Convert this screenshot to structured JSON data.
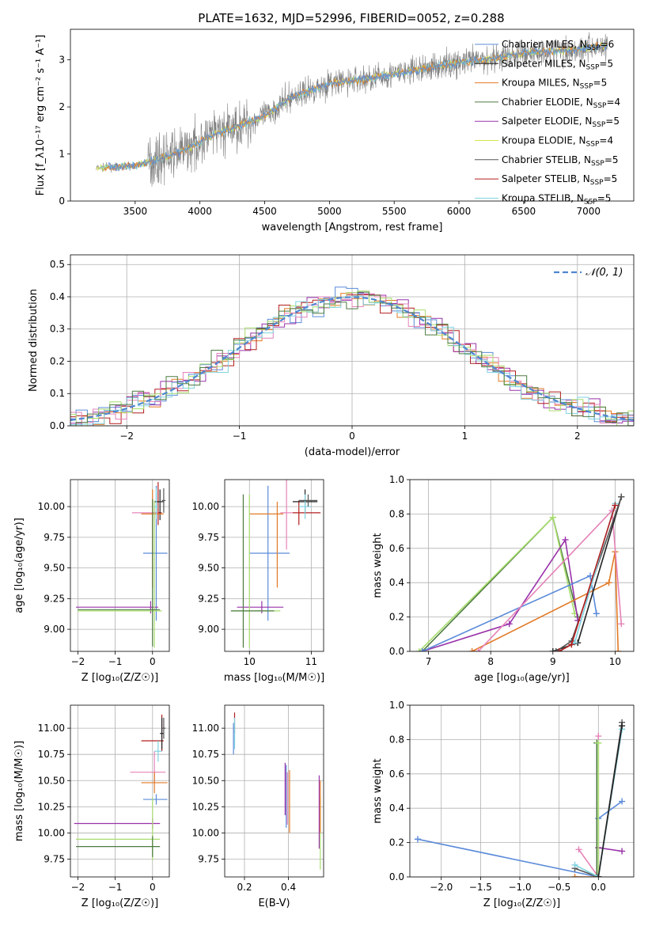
{
  "figure_title": "PLATE=1632, MJD=52996, FIBERID=0052, z=0.288",
  "colors": {
    "Chabrier MILES": "#5b8bd9",
    "Salpeter MILES": "#222222",
    "Kroupa MILES": "#e27a26",
    "Chabrier ELODIE": "#4d7a40",
    "Salpeter ELODIE": "#9932aa",
    "Kroupa ELODIE": "#d4e34a",
    "Chabrier STELIB": "#555555",
    "Salpeter STELIB": "#b21f1f",
    "Kroupa STELIB": "#7fd3e0",
    "pink": "#e583b8",
    "lime": "#a8de6e",
    "data": "#808080",
    "normal": "#4f86d0"
  },
  "chart_data": [
    {
      "id": "spectrum",
      "type": "line",
      "xlabel": "wavelength [Angstrom, rest frame]",
      "ylabel": "Flux [f_λ10⁻¹⁷ erg cm⁻² s⁻¹ A⁻¹]",
      "xlim": [
        3000,
        7350
      ],
      "ylim": [
        0,
        3.65
      ],
      "xticks": [
        3500,
        4000,
        4500,
        5000,
        5500,
        6000,
        6500,
        7000
      ],
      "yticks": [
        0,
        1,
        2,
        3
      ],
      "legend": "upper-right",
      "legend_entries": [
        {
          "label": "Chabrier MILES, N",
          "sub": "SSP",
          "suffix": "=6",
          "color": "Chabrier MILES"
        },
        {
          "label": "Salpeter MILES, N",
          "sub": "SSP",
          "suffix": "=5",
          "color": "Salpeter MILES"
        },
        {
          "label": "Kroupa MILES, N",
          "sub": "SSP",
          "suffix": "=5",
          "color": "Kroupa MILES"
        },
        {
          "label": "Chabrier ELODIE, N",
          "sub": "SSP",
          "suffix": "=4",
          "color": "Chabrier ELODIE"
        },
        {
          "label": "Salpeter ELODIE, N",
          "sub": "SSP",
          "suffix": "=5",
          "color": "Salpeter ELODIE"
        },
        {
          "label": "Kroupa ELODIE, N",
          "sub": "SSP",
          "suffix": "=4",
          "color": "Kroupa ELODIE"
        },
        {
          "label": "Chabrier STELIB, N",
          "sub": "SSP",
          "suffix": "=5",
          "color": "Chabrier STELIB"
        },
        {
          "label": "Salpeter STELIB, N",
          "sub": "SSP",
          "suffix": "=5",
          "color": "Salpeter STELIB"
        },
        {
          "label": "Kroupa STELIB, N",
          "sub": "SSP",
          "suffix": "=5",
          "color": "Kroupa STELIB"
        }
      ],
      "data_wavelength_range": [
        3200,
        7150
      ],
      "continuum_knots": {
        "x": [
          3200,
          3500,
          3700,
          3900,
          4100,
          4300,
          4500,
          4700,
          5000,
          5300,
          5600,
          5900,
          6200,
          6500,
          6800,
          7150
        ],
        "y": [
          0.7,
          0.75,
          0.9,
          1.1,
          1.4,
          1.6,
          1.8,
          2.2,
          2.5,
          2.6,
          2.75,
          2.9,
          3.0,
          3.15,
          3.2,
          3.3
        ]
      }
    },
    {
      "id": "residuals",
      "type": "step",
      "xlabel": "(data-model)/error",
      "ylabel": "Normed distribution",
      "xlim": [
        -2.5,
        2.5
      ],
      "ylim": [
        0,
        0.53
      ],
      "xticks": [
        -2,
        -1,
        0,
        1,
        2
      ],
      "yticks": [
        0,
        0.1,
        0.2,
        0.3,
        0.4,
        0.5
      ],
      "grid": true,
      "legend": "upper-right",
      "legend_label": "𝒩(0, 1)",
      "bin_width": 0.1,
      "histogram_colors": [
        "Kroupa MILES",
        "Chabrier MILES",
        "Salpeter ELODIE",
        "Salpeter STELIB",
        "pink",
        "lime",
        "Kroupa STELIB",
        "Chabrier ELODIE"
      ]
    },
    {
      "id": "age_vs_Z",
      "type": "errorbar",
      "xlabel": "Z [log₁₀(Z/Z☉)]",
      "ylabel": "age  [log₁₀(age/yr)]",
      "xlim": [
        -2.2,
        0.45
      ],
      "ylim": [
        8.82,
        10.22
      ],
      "xticks": [
        -2,
        -1,
        0
      ],
      "yticks": [
        9.0,
        9.25,
        9.5,
        9.75,
        10.0
      ],
      "grid": true,
      "points": [
        {
          "x": 0.1,
          "y": 9.62,
          "xerr": [
            0.35,
            0.3
          ],
          "yerr": [
            0.55,
            0.55
          ],
          "color": "Chabrier MILES"
        },
        {
          "x": 0.15,
          "y": 9.95,
          "xerr": [
            0.15,
            0.1
          ],
          "yerr": [
            0.1,
            0.25
          ],
          "color": "Salpeter STELIB"
        },
        {
          "x": 0.2,
          "y": 10.04,
          "xerr": [
            0.15,
            0.1
          ],
          "yerr": [
            0.15,
            0.1
          ],
          "color": "Salpeter MILES"
        },
        {
          "x": 0.05,
          "y": 9.95,
          "xerr": [
            0.6,
            0.1
          ],
          "yerr": [
            0.05,
            0.05
          ],
          "color": "pink"
        },
        {
          "x": 0.0,
          "y": 9.94,
          "xerr": [
            0.3,
            0.3
          ],
          "yerr": [
            0.6,
            0.2
          ],
          "color": "Kroupa MILES"
        },
        {
          "x": -0.05,
          "y": 9.18,
          "xerr": [
            2.0,
            0.2
          ],
          "yerr": [
            0.05,
            0.05
          ],
          "color": "Salpeter ELODIE"
        },
        {
          "x": 0.05,
          "y": 9.15,
          "xerr": [
            2.05,
            0.2
          ],
          "yerr": [
            0.3,
            0.9
          ],
          "color": "lime"
        },
        {
          "x": 0.0,
          "y": 9.16,
          "xerr": [
            2.0,
            0.2
          ],
          "yerr": [
            0.3,
            0.9
          ],
          "color": "Chabrier ELODIE"
        },
        {
          "x": 0.1,
          "y": 10.0,
          "xerr": [
            0.05,
            0.05
          ],
          "yerr": [
            0.1,
            0.15
          ],
          "color": "Kroupa STELIB"
        },
        {
          "x": 0.3,
          "y": 10.05,
          "xerr": [
            0.05,
            0.05
          ],
          "yerr": [
            0.1,
            0.1
          ],
          "color": "Chabrier STELIB"
        }
      ]
    },
    {
      "id": "age_vs_mass",
      "type": "errorbar",
      "xlabel": "mass [log₁₀(M/M☉)]",
      "ylabel": "",
      "xlim": [
        9.6,
        11.2
      ],
      "ylim": [
        8.82,
        10.22
      ],
      "xticks": [
        10,
        11
      ],
      "yticks": [
        9.0,
        9.25,
        9.5,
        9.75,
        10.0
      ],
      "grid": true,
      "points": [
        {
          "x": 10.3,
          "y": 9.62,
          "xerr": [
            0.3,
            0.35
          ],
          "yerr": [
            0.55,
            0.55
          ],
          "color": "Chabrier MILES"
        },
        {
          "x": 10.8,
          "y": 9.95,
          "xerr": [
            0.1,
            0.35
          ],
          "yerr": [
            0.1,
            0.1
          ],
          "color": "Salpeter STELIB"
        },
        {
          "x": 10.9,
          "y": 10.04,
          "xerr": [
            0.2,
            0.2
          ],
          "yerr": [
            0.1,
            0.1
          ],
          "color": "Salpeter MILES"
        },
        {
          "x": 10.6,
          "y": 9.95,
          "xerr": [
            0.1,
            0.1
          ],
          "yerr": [
            0.3,
            0.3
          ],
          "color": "pink"
        },
        {
          "x": 10.45,
          "y": 9.94,
          "xerr": [
            0.45,
            0.1
          ],
          "yerr": [
            0.6,
            0.1
          ],
          "color": "Kroupa MILES"
        },
        {
          "x": 10.2,
          "y": 9.18,
          "xerr": [
            0.4,
            0.35
          ],
          "yerr": [
            0.05,
            0.05
          ],
          "color": "Salpeter ELODIE"
        },
        {
          "x": 10.0,
          "y": 9.15,
          "xerr": [
            0.3,
            0.5
          ],
          "yerr": [
            0.3,
            0.95
          ],
          "color": "lime"
        },
        {
          "x": 9.9,
          "y": 9.15,
          "xerr": [
            0.2,
            0.5
          ],
          "yerr": [
            0.3,
            0.95
          ],
          "color": "Chabrier ELODIE"
        },
        {
          "x": 10.9,
          "y": 10.0,
          "xerr": [
            0.1,
            0.1
          ],
          "yerr": [
            0.1,
            0.1
          ],
          "color": "Kroupa STELIB"
        },
        {
          "x": 10.95,
          "y": 10.05,
          "xerr": [
            0.15,
            0.15
          ],
          "yerr": [
            0.05,
            0.05
          ],
          "color": "Chabrier STELIB"
        }
      ]
    },
    {
      "id": "weight_vs_age",
      "type": "line",
      "xlabel": "age  [log₁₀(age/yr)]",
      "ylabel": "mass weight",
      "xlim": [
        6.7,
        10.3
      ],
      "ylim": [
        0,
        1.0
      ],
      "xticks": [
        7,
        8,
        9,
        10
      ],
      "yticks": [
        0,
        0.2,
        0.4,
        0.6,
        0.8,
        1.0
      ],
      "grid": true,
      "series": [
        {
          "color": "Chabrier ELODIE",
          "x": [
            6.9,
            9.0,
            9.4
          ],
          "y": [
            0.0,
            0.78,
            0.2
          ]
        },
        {
          "color": "lime",
          "x": [
            6.85,
            9.0,
            9.35
          ],
          "y": [
            0.0,
            0.78,
            0.22
          ]
        },
        {
          "color": "Salpeter ELODIE",
          "x": [
            6.9,
            8.3,
            9.2,
            9.4
          ],
          "y": [
            0.0,
            0.16,
            0.65,
            0.18
          ]
        },
        {
          "color": "Chabrier MILES",
          "x": [
            6.9,
            9.6,
            9.7
          ],
          "y": [
            0.0,
            0.44,
            0.22
          ]
        },
        {
          "color": "Kroupa MILES",
          "x": [
            7.7,
            9.9,
            10.0,
            10.05
          ],
          "y": [
            0.0,
            0.4,
            0.58,
            0.0
          ]
        },
        {
          "color": "pink",
          "x": [
            7.8,
            9.95,
            10.1
          ],
          "y": [
            0.0,
            0.82,
            0.16
          ]
        },
        {
          "color": "Salpeter MILES",
          "x": [
            9.0,
            9.4,
            10.1
          ],
          "y": [
            0.0,
            0.05,
            0.9
          ]
        },
        {
          "color": "Chabrier STELIB",
          "x": [
            9.05,
            9.3,
            10.1
          ],
          "y": [
            0.0,
            0.06,
            0.9
          ]
        },
        {
          "color": "Kroupa STELIB",
          "x": [
            9.1,
            9.35,
            10.0
          ],
          "y": [
            0.0,
            0.05,
            0.86
          ]
        },
        {
          "color": "Salpeter STELIB",
          "x": [
            9.1,
            9.3,
            10.0
          ],
          "y": [
            0.0,
            0.04,
            0.85
          ]
        }
      ]
    },
    {
      "id": "mass_vs_Z",
      "type": "errorbar",
      "xlabel": "Z [log₁₀(Z/Z☉)]",
      "ylabel": "mass [log₁₀(M/M☉)]",
      "xlim": [
        -2.2,
        0.45
      ],
      "ylim": [
        9.58,
        11.22
      ],
      "xticks": [
        -2,
        -1,
        0
      ],
      "yticks": [
        9.75,
        10.0,
        10.25,
        10.5,
        10.75,
        11.0
      ],
      "grid": true,
      "points": [
        {
          "x": 0.1,
          "y": 10.32,
          "xerr": [
            0.35,
            0.3
          ],
          "yerr": [
            0.05,
            0.05
          ],
          "color": "Chabrier MILES"
        },
        {
          "x": 0.25,
          "y": 10.88,
          "xerr": [
            0.55,
            0.05
          ],
          "yerr": [
            0.1,
            0.25
          ],
          "color": "Salpeter STELIB"
        },
        {
          "x": 0.25,
          "y": 10.95,
          "xerr": [
            0.05,
            0.05
          ],
          "yerr": [
            0.15,
            0.15
          ],
          "color": "Salpeter MILES"
        },
        {
          "x": 0.05,
          "y": 10.58,
          "xerr": [
            0.65,
            0.3
          ],
          "yerr": [
            0.1,
            0.2
          ],
          "color": "pink"
        },
        {
          "x": 0.05,
          "y": 10.48,
          "xerr": [
            0.35,
            0.35
          ],
          "yerr": [
            0.1,
            0.1
          ],
          "color": "Kroupa MILES"
        },
        {
          "x": 0.0,
          "y": 10.09,
          "xerr": [
            2.1,
            0.2
          ],
          "yerr": [
            0.05,
            0.05
          ],
          "color": "Salpeter ELODIE"
        },
        {
          "x": 0.0,
          "y": 9.94,
          "xerr": [
            2.05,
            0.2
          ],
          "yerr": [
            0.2,
            0.4
          ],
          "color": "lime"
        },
        {
          "x": 0.0,
          "y": 9.87,
          "xerr": [
            2.05,
            0.2
          ],
          "yerr": [
            0.1,
            0.1
          ],
          "color": "Chabrier ELODIE"
        },
        {
          "x": 0.15,
          "y": 10.78,
          "xerr": [
            0.1,
            0.1
          ],
          "yerr": [
            0.1,
            0.1
          ],
          "color": "Kroupa STELIB"
        },
        {
          "x": 0.3,
          "y": 11.0,
          "xerr": [
            0.05,
            0.05
          ],
          "yerr": [
            0.1,
            0.1
          ],
          "color": "Chabrier STELIB"
        }
      ]
    },
    {
      "id": "mass_vs_EBV",
      "type": "errorbar",
      "xlabel": "E(B-V)",
      "ylabel": "",
      "xlim": [
        0.11,
        0.56
      ],
      "ylim": [
        9.58,
        11.22
      ],
      "xticks": [
        0.2,
        0.4
      ],
      "yticks": [
        9.75,
        10.0,
        10.25,
        10.5,
        10.75,
        11.0
      ],
      "grid": true,
      "points": [
        {
          "x": 0.155,
          "y": 11.05,
          "xerr": [
            0,
            0
          ],
          "yerr": [
            0.1,
            0.1
          ],
          "color": "Salpeter STELIB"
        },
        {
          "x": 0.155,
          "y": 10.95,
          "xerr": [
            0,
            0
          ],
          "yerr": [
            0.15,
            0.15
          ],
          "color": "Kroupa STELIB"
        },
        {
          "x": 0.15,
          "y": 10.9,
          "xerr": [
            0,
            0
          ],
          "yerr": [
            0.15,
            0.15
          ],
          "color": "Chabrier MILES"
        },
        {
          "x": 0.385,
          "y": 10.42,
          "xerr": [
            0,
            0
          ],
          "yerr": [
            0.25,
            0.25
          ],
          "color": "Salpeter ELODIE"
        },
        {
          "x": 0.39,
          "y": 10.35,
          "xerr": [
            0,
            0
          ],
          "yerr": [
            0.3,
            0.3
          ],
          "color": "Chabrier MILES"
        },
        {
          "x": 0.395,
          "y": 10.33,
          "xerr": [
            0,
            0
          ],
          "yerr": [
            0.25,
            0.25
          ],
          "color": "pink"
        },
        {
          "x": 0.405,
          "y": 10.3,
          "xerr": [
            0,
            0
          ],
          "yerr": [
            0.3,
            0.3
          ],
          "color": "Kroupa MILES"
        },
        {
          "x": 0.54,
          "y": 10.2,
          "xerr": [
            0,
            0
          ],
          "yerr": [
            0.35,
            0.35
          ],
          "color": "Salpeter ELODIE"
        },
        {
          "x": 0.545,
          "y": 10.0,
          "xerr": [
            0,
            0
          ],
          "yerr": [
            0.35,
            0.35
          ],
          "color": "lime"
        },
        {
          "x": 0.545,
          "y": 10.25,
          "xerr": [
            0,
            0
          ],
          "yerr": [
            0.25,
            0.25
          ],
          "color": "Kroupa MILES"
        }
      ]
    },
    {
      "id": "weight_vs_Z",
      "type": "line",
      "xlabel": "Z [log₁₀(Z/Z☉)]",
      "ylabel": "mass weight",
      "xlim": [
        -2.4,
        0.45
      ],
      "ylim": [
        0,
        1.0
      ],
      "xticks": [
        -2.0,
        -1.5,
        -1.0,
        -0.5,
        0.0
      ],
      "yticks": [
        0,
        0.2,
        0.4,
        0.6,
        0.8,
        1.0
      ],
      "grid": true,
      "series": [
        {
          "color": "Chabrier MILES",
          "x": [
            -2.3,
            0.0,
            0.0,
            0.3
          ],
          "y": [
            0.22,
            0.0,
            0.34,
            0.44
          ]
        },
        {
          "color": "Salpeter ELODIE",
          "x": [
            0.0,
            0.0,
            0.3
          ],
          "y": [
            0.0,
            0.17,
            0.15
          ]
        },
        {
          "color": "pink",
          "x": [
            -0.25,
            0.0,
            0.0
          ],
          "y": [
            0.16,
            0.0,
            0.82
          ]
        },
        {
          "color": "Chabrier ELODIE",
          "x": [
            -0.02,
            -0.02
          ],
          "y": [
            0.0,
            0.78
          ]
        },
        {
          "color": "lime",
          "x": [
            0.0,
            0.0
          ],
          "y": [
            0.0,
            0.78
          ]
        },
        {
          "color": "Kroupa MILES",
          "x": [
            -0.3,
            0.0
          ],
          "y": [
            0.0,
            0.0
          ]
        },
        {
          "color": "Chabrier STELIB",
          "x": [
            -0.3,
            0.0,
            0.3
          ],
          "y": [
            0.05,
            0.0,
            0.9
          ]
        },
        {
          "color": "Kroupa STELIB",
          "x": [
            -0.3,
            0.0,
            0.3
          ],
          "y": [
            0.07,
            0.0,
            0.86
          ]
        },
        {
          "color": "Salpeter MILES",
          "x": [
            0.0,
            0.3
          ],
          "y": [
            0.0,
            0.88
          ]
        }
      ]
    }
  ]
}
